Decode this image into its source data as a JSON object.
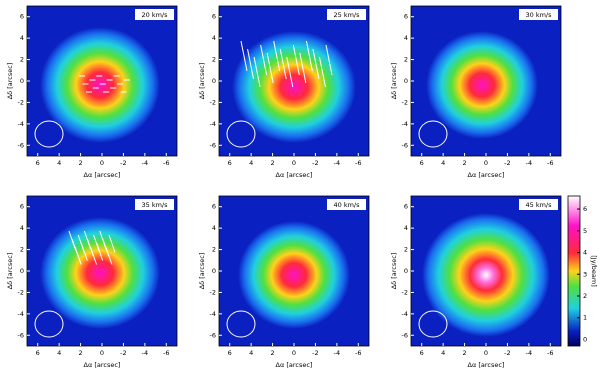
{
  "chart_data": [
    {
      "type": "image",
      "title": "20 km/s",
      "xlabel": "Δα [arcsec]",
      "ylabel": "Δδ [arcsec]",
      "xlim": [
        7,
        -7
      ],
      "ylim": [
        -7,
        7
      ],
      "xticks": [
        6,
        4,
        2,
        0,
        -2,
        -4,
        -6
      ],
      "yticks": [
        -6,
        -4,
        -2,
        0,
        2,
        4,
        6
      ]
    },
    {
      "type": "image",
      "title": "25 km/s",
      "xlabel": "Δα [arcsec]",
      "ylabel": "Δδ [arcsec]",
      "xlim": [
        7,
        -7
      ],
      "ylim": [
        -7,
        7
      ],
      "xticks": [
        6,
        4,
        2,
        0,
        -2,
        -4,
        -6
      ],
      "yticks": [
        -6,
        -4,
        -2,
        0,
        2,
        4,
        6
      ]
    },
    {
      "type": "image",
      "title": "30 km/s",
      "xlabel": "Δα [arcsec]",
      "ylabel": "Δδ [arcsec]",
      "xlim": [
        7,
        -7
      ],
      "ylim": [
        -7,
        7
      ],
      "xticks": [
        6,
        4,
        2,
        0,
        -2,
        -4,
        -6
      ],
      "yticks": [
        -6,
        -4,
        -2,
        0,
        2,
        4,
        6
      ]
    },
    {
      "type": "image",
      "title": "35 km/s",
      "xlabel": "Δα [arcsec]",
      "ylabel": "Δδ [arcsec]",
      "xlim": [
        7,
        -7
      ],
      "ylim": [
        -7,
        7
      ],
      "xticks": [
        6,
        4,
        2,
        0,
        -2,
        -4,
        -6
      ],
      "yticks": [
        -6,
        -4,
        -2,
        0,
        2,
        4,
        6
      ]
    },
    {
      "type": "image",
      "title": "40 km/s",
      "xlabel": "Δα [arcsec]",
      "ylabel": "Δδ [arcsec]",
      "xlim": [
        7,
        -7
      ],
      "ylim": [
        -7,
        7
      ],
      "xticks": [
        6,
        4,
        2,
        0,
        -2,
        -4,
        -6
      ],
      "yticks": [
        -6,
        -4,
        -2,
        0,
        2,
        4,
        6
      ]
    },
    {
      "type": "image",
      "title": "45 km/s",
      "xlabel": "Δα [arcsec]",
      "ylabel": "Δδ [arcsec]",
      "xlim": [
        7,
        -7
      ],
      "ylim": [
        -7,
        7
      ],
      "xticks": [
        6,
        4,
        2,
        0,
        -2,
        -4,
        -6
      ],
      "yticks": [
        -6,
        -4,
        -2,
        0,
        2,
        4,
        6
      ]
    }
  ],
  "colorbar": {
    "label": "[Jy/beam]",
    "lim": [
      -0.3,
      6.6
    ],
    "ticks": [
      0,
      1,
      2,
      3,
      4,
      5,
      6
    ]
  }
}
